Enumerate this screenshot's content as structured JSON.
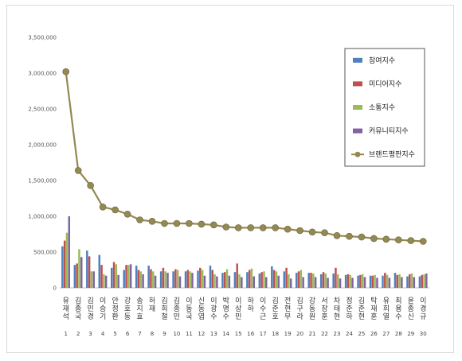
{
  "chart_data": {
    "type": "bar",
    "title": "",
    "xlabel": "",
    "ylabel": "",
    "ylim": [
      0,
      3500000
    ],
    "yticks": [
      "0",
      "500,000",
      "1,000,000",
      "1,500,000",
      "2,000,000",
      "2,500,000",
      "3,000,000",
      "3,500,000"
    ],
    "grid": false,
    "legend_position": "top-right",
    "categories": [
      "유재석",
      "김종국",
      "김민경",
      "이승기",
      "안정환",
      "강호동",
      "송지효",
      "허재",
      "김희철",
      "김종민",
      "이동국",
      "신동엽",
      "이광수",
      "박명수",
      "이상민",
      "하하",
      "이수근",
      "김준호",
      "전현무",
      "김구라",
      "강동원",
      "서장훈",
      "차태현",
      "정준하",
      "김준현",
      "탁재훈",
      "유희열",
      "최용수",
      "윤종신",
      "이경규"
    ],
    "indices": [
      "1",
      "2",
      "3",
      "4",
      "5",
      "6",
      "7",
      "8",
      "9",
      "10",
      "11",
      "12",
      "13",
      "14",
      "15",
      "16",
      "17",
      "18",
      "19",
      "20",
      "21",
      "22",
      "23",
      "24",
      "25",
      "26",
      "27",
      "28",
      "29",
      "30"
    ],
    "series": [
      {
        "name": "참여지수",
        "type": "bar",
        "color": "#4f81bd",
        "values": [
          580000,
          320000,
          520000,
          460000,
          280000,
          250000,
          310000,
          310000,
          230000,
          230000,
          230000,
          240000,
          310000,
          210000,
          220000,
          220000,
          200000,
          300000,
          230000,
          210000,
          210000,
          190000,
          200000,
          180000,
          170000,
          170000,
          170000,
          210000,
          160000,
          160000
        ]
      },
      {
        "name": "미디어지수",
        "type": "bar",
        "color": "#c0504d",
        "values": [
          660000,
          340000,
          440000,
          320000,
          360000,
          320000,
          250000,
          260000,
          280000,
          260000,
          250000,
          280000,
          250000,
          220000,
          340000,
          250000,
          220000,
          250000,
          280000,
          230000,
          210000,
          220000,
          280000,
          190000,
          180000,
          170000,
          210000,
          180000,
          190000,
          180000
        ]
      },
      {
        "name": "소통지수",
        "type": "bar",
        "color": "#9bbb59",
        "values": [
          770000,
          540000,
          230000,
          190000,
          330000,
          320000,
          230000,
          230000,
          230000,
          250000,
          230000,
          250000,
          190000,
          260000,
          190000,
          270000,
          230000,
          230000,
          190000,
          250000,
          200000,
          200000,
          190000,
          180000,
          190000,
          180000,
          180000,
          190000,
          200000,
          190000
        ]
      },
      {
        "name": "커뮤니티지수",
        "type": "bar",
        "color": "#8064a2",
        "values": [
          1000000,
          430000,
          230000,
          170000,
          180000,
          330000,
          190000,
          170000,
          210000,
          160000,
          210000,
          170000,
          160000,
          170000,
          150000,
          160000,
          150000,
          170000,
          130000,
          150000,
          150000,
          140000,
          130000,
          140000,
          150000,
          140000,
          140000,
          150000,
          150000,
          200000
        ]
      },
      {
        "name": "브랜드평판지수",
        "type": "line",
        "color": "#938953",
        "values": [
          3020000,
          1640000,
          1430000,
          1130000,
          1090000,
          1030000,
          950000,
          930000,
          900000,
          900000,
          900000,
          890000,
          880000,
          850000,
          840000,
          840000,
          840000,
          840000,
          820000,
          800000,
          780000,
          770000,
          730000,
          720000,
          710000,
          690000,
          680000,
          670000,
          660000,
          650000
        ]
      }
    ]
  }
}
